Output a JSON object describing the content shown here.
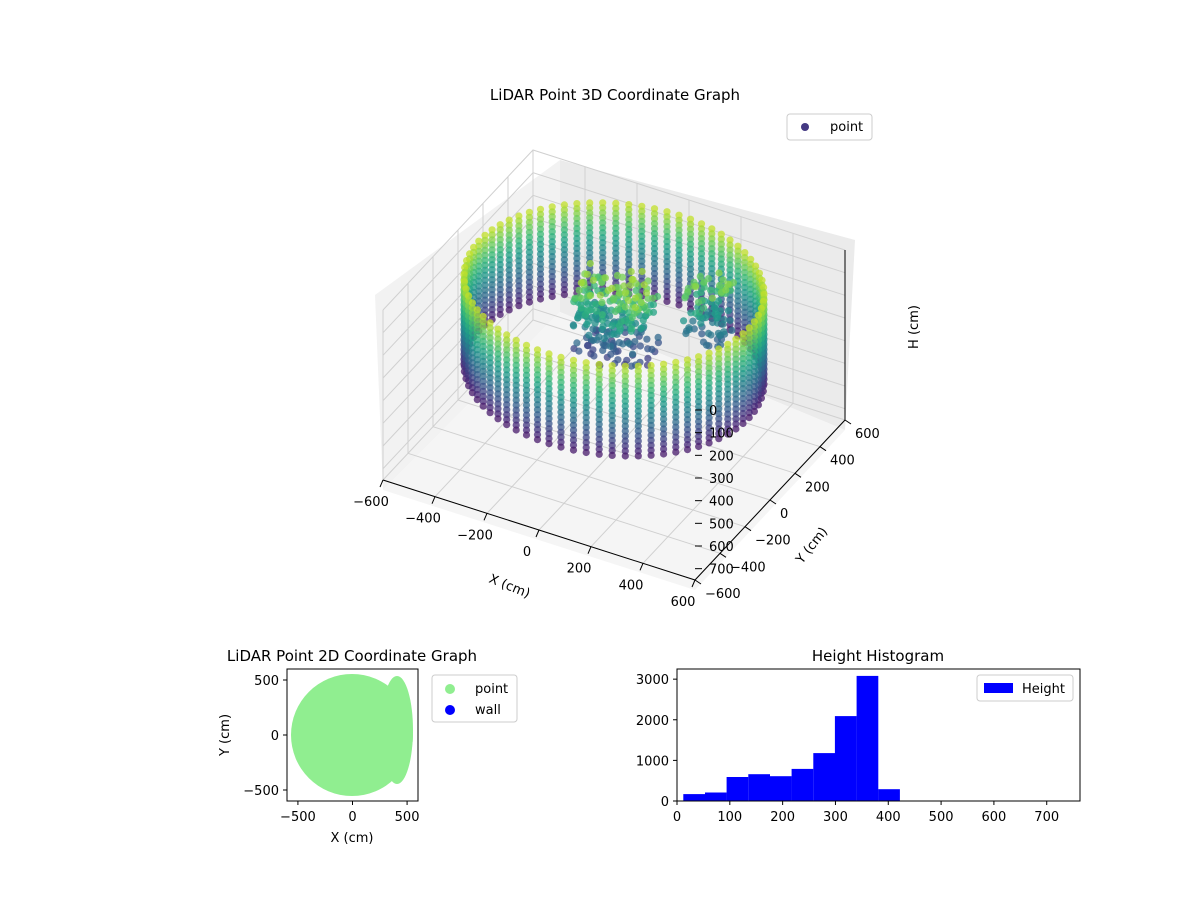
{
  "chart_data": [
    {
      "type": "scatter",
      "projection": "3d",
      "title": "LiDAR Point 3D Coordinate Graph",
      "xlabel": "X (cm)",
      "ylabel": "Y (cm)",
      "zlabel": "H (cm)",
      "xlim": [
        -600,
        600
      ],
      "ylim": [
        -600,
        600
      ],
      "zlim": [
        0,
        750
      ],
      "z_inverted": true,
      "x_ticks": [
        "−600",
        "−400",
        "−200",
        "0",
        "200",
        "400",
        "600"
      ],
      "y_ticks": [
        "−600",
        "−400",
        "−200",
        "0",
        "200",
        "400",
        "600"
      ],
      "z_ticks": [
        "0",
        "100",
        "200",
        "300",
        "400",
        "500",
        "600",
        "700"
      ],
      "legend": [
        {
          "label": "point",
          "color": "#443983"
        }
      ],
      "legend_position": "top-right",
      "colormap": "viridis",
      "description": "Cylindrical room scan: wall points at radius ~520 cm spanning heights ~0-420 cm, plus interior object points",
      "series": [
        {
          "name": "point",
          "shape": "ring-wall",
          "radius": 520,
          "h_range": [
            20,
            420
          ]
        }
      ]
    },
    {
      "type": "scatter",
      "title": "LiDAR Point 2D Coordinate Graph",
      "xlabel": "X (cm)",
      "ylabel": "Y (cm)",
      "xlim": [
        -600,
        600
      ],
      "ylim": [
        -600,
        600
      ],
      "x_ticks": [
        "−500",
        "0",
        "500"
      ],
      "y_ticks": [
        "−500",
        "0",
        "500"
      ],
      "legend": [
        {
          "label": "point",
          "color": "#90ee90"
        },
        {
          "label": "wall",
          "color": "#0000ff"
        }
      ],
      "legend_position": "outside-right",
      "filled_disk_radius": 560
    },
    {
      "type": "bar",
      "title": "Height Histogram",
      "xlabel": "",
      "ylabel": "",
      "xlim": [
        0,
        763
      ],
      "ylim": [
        0,
        3250
      ],
      "x_ticks": [
        "0",
        "100",
        "200",
        "300",
        "400",
        "500",
        "600",
        "700"
      ],
      "y_ticks": [
        "0",
        "1000",
        "2000",
        "3000"
      ],
      "legend": [
        {
          "label": "Height",
          "color": "#0000ff"
        }
      ],
      "legend_position": "top-right",
      "bin_edges": [
        12,
        53,
        94,
        135,
        176,
        217,
        258,
        299,
        340,
        381,
        422
      ],
      "values": [
        170,
        210,
        590,
        660,
        610,
        790,
        1180,
        2090,
        3080,
        290
      ],
      "bar_color": "#0000ff"
    }
  ]
}
